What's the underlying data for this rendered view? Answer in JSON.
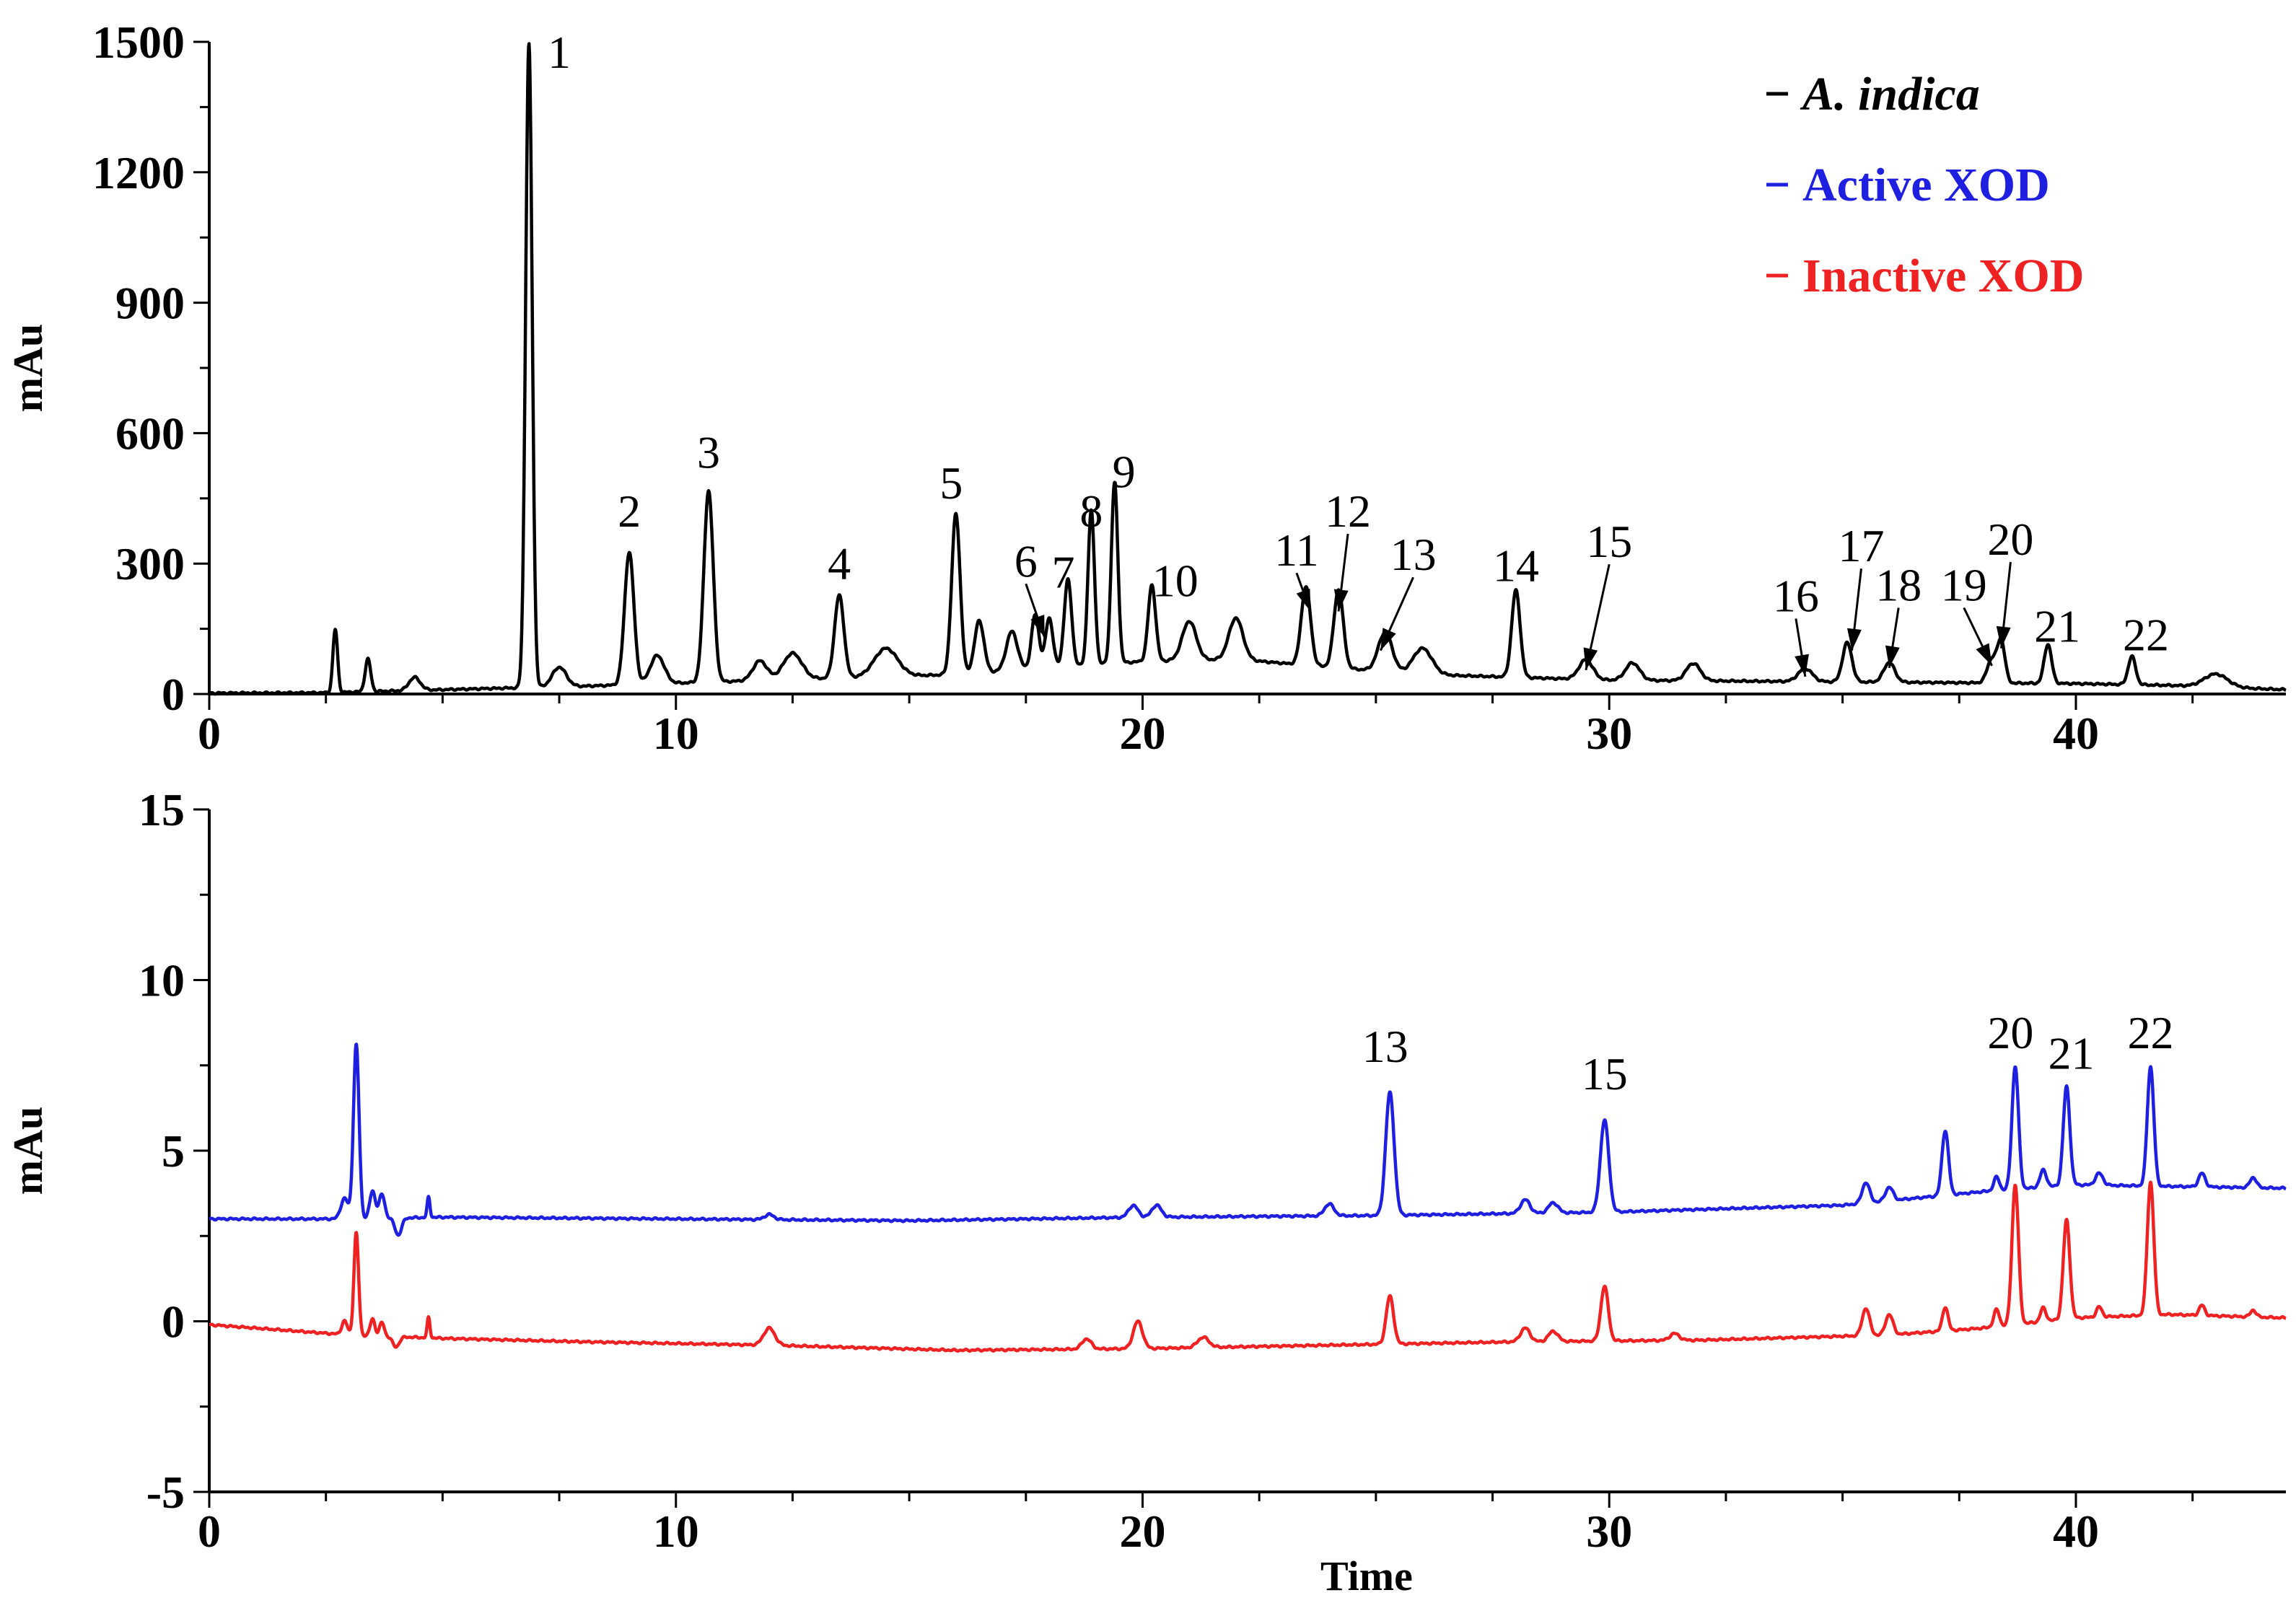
{
  "chart_data": [
    {
      "type": "line",
      "panel": "top",
      "xlabel": "",
      "ylabel": "mAu",
      "xlim": [
        0,
        44.5
      ],
      "ylim": [
        0,
        1500
      ],
      "x_ticks": [
        0,
        10,
        20,
        30,
        40
      ],
      "y_ticks": [
        0,
        300,
        600,
        900,
        1200,
        1500
      ],
      "x_tick_labels": [
        "0",
        "10",
        "20",
        "30",
        "40"
      ],
      "y_tick_labels": [
        "0",
        "300",
        "600",
        "900",
        "1200",
        "1500"
      ],
      "legend": [
        {
          "name": "A. indica",
          "color": "#000000",
          "italic": true
        },
        {
          "name": "Active XOD",
          "color": "#1f1fe0",
          "italic": false
        },
        {
          "name": "Inactive XOD",
          "color": "#ee2222",
          "italic": false
        }
      ],
      "series": [
        {
          "name": "A. indica",
          "color": "#000000",
          "baseline": [
            [
              0,
              2
            ],
            [
              2.5,
              3
            ],
            [
              5,
              10
            ],
            [
              8,
              18
            ],
            [
              12,
              32
            ],
            [
              16,
              45
            ],
            [
              18,
              60
            ],
            [
              20,
              75
            ],
            [
              22,
              80
            ],
            [
              24,
              62
            ],
            [
              26,
              45
            ],
            [
              30,
              32
            ],
            [
              35,
              28
            ],
            [
              40,
              24
            ],
            [
              42,
              20
            ],
            [
              44.5,
              10
            ]
          ],
          "peaks": [
            {
              "x": 2.7,
              "y": 145,
              "w": 0.05
            },
            {
              "x": 3.4,
              "y": 75,
              "w": 0.06
            },
            {
              "x": 4.4,
              "y": 30,
              "w": 0.12
            },
            {
              "x": 6.85,
              "y": 1480,
              "w": 0.07
            },
            {
              "x": 7.5,
              "y": 45,
              "w": 0.15
            },
            {
              "x": 9.0,
              "y": 305,
              "w": 0.1
            },
            {
              "x": 9.6,
              "y": 65,
              "w": 0.15
            },
            {
              "x": 10.7,
              "y": 440,
              "w": 0.1
            },
            {
              "x": 11.8,
              "y": 45,
              "w": 0.15
            },
            {
              "x": 12.5,
              "y": 60,
              "w": 0.2
            },
            {
              "x": 13.5,
              "y": 190,
              "w": 0.1
            },
            {
              "x": 14.5,
              "y": 65,
              "w": 0.25
            },
            {
              "x": 16.0,
              "y": 370,
              "w": 0.09
            },
            {
              "x": 16.5,
              "y": 120,
              "w": 0.1
            },
            {
              "x": 17.2,
              "y": 90,
              "w": 0.12
            },
            {
              "x": 17.7,
              "y": 125,
              "w": 0.08
            },
            {
              "x": 18.0,
              "y": 115,
              "w": 0.08
            },
            {
              "x": 18.4,
              "y": 200,
              "w": 0.08
            },
            {
              "x": 18.9,
              "y": 355,
              "w": 0.07
            },
            {
              "x": 19.4,
              "y": 415,
              "w": 0.07
            },
            {
              "x": 20.2,
              "y": 175,
              "w": 0.08
            },
            {
              "x": 21.0,
              "y": 90,
              "w": 0.15
            },
            {
              "x": 22.0,
              "y": 95,
              "w": 0.15
            },
            {
              "x": 23.5,
              "y": 180,
              "w": 0.1
            },
            {
              "x": 24.2,
              "y": 180,
              "w": 0.1
            },
            {
              "x": 25.2,
              "y": 90,
              "w": 0.15
            },
            {
              "x": 26.0,
              "y": 60,
              "w": 0.2
            },
            {
              "x": 28.0,
              "y": 200,
              "w": 0.09
            },
            {
              "x": 29.5,
              "y": 45,
              "w": 0.15
            },
            {
              "x": 30.5,
              "y": 40,
              "w": 0.15
            },
            {
              "x": 31.8,
              "y": 40,
              "w": 0.15
            },
            {
              "x": 34.2,
              "y": 30,
              "w": 0.15
            },
            {
              "x": 35.1,
              "y": 90,
              "w": 0.1
            },
            {
              "x": 36.0,
              "y": 45,
              "w": 0.12
            },
            {
              "x": 38.2,
              "y": 55,
              "w": 0.1
            },
            {
              "x": 38.4,
              "y": 95,
              "w": 0.08
            },
            {
              "x": 39.4,
              "y": 90,
              "w": 0.08
            },
            {
              "x": 41.2,
              "y": 65,
              "w": 0.08
            },
            {
              "x": 43.0,
              "y": 30,
              "w": 0.25
            }
          ]
        }
      ],
      "peak_labels": [
        {
          "text": "1",
          "x": 7.5,
          "y": 1440,
          "arrow": false
        },
        {
          "text": "2",
          "x": 9.0,
          "y": 385,
          "arrow": false
        },
        {
          "text": "3",
          "x": 10.7,
          "y": 520,
          "arrow": false
        },
        {
          "text": "4",
          "x": 13.5,
          "y": 265,
          "arrow": false
        },
        {
          "text": "5",
          "x": 15.9,
          "y": 450,
          "arrow": false
        },
        {
          "text": "6",
          "x": 17.5,
          "y": 270,
          "arrow": true,
          "tx": 17.9,
          "ty": 130
        },
        {
          "text": "7",
          "x": 18.3,
          "y": 245,
          "arrow": false
        },
        {
          "text": "8",
          "x": 18.9,
          "y": 385,
          "arrow": false
        },
        {
          "text": "9",
          "x": 19.6,
          "y": 475,
          "arrow": false
        },
        {
          "text": "10",
          "x": 20.7,
          "y": 225,
          "arrow": false
        },
        {
          "text": "11",
          "x": 23.3,
          "y": 295,
          "arrow": true,
          "tx": 23.6,
          "ty": 190
        },
        {
          "text": "12",
          "x": 24.4,
          "y": 385,
          "arrow": true,
          "tx": 24.2,
          "ty": 190
        },
        {
          "text": "13",
          "x": 25.8,
          "y": 285,
          "arrow": true,
          "tx": 25.1,
          "ty": 100
        },
        {
          "text": "14",
          "x": 28.0,
          "y": 260,
          "arrow": false
        },
        {
          "text": "15",
          "x": 30.0,
          "y": 315,
          "arrow": true,
          "tx": 29.5,
          "ty": 55
        },
        {
          "text": "16",
          "x": 34.0,
          "y": 190,
          "arrow": true,
          "tx": 34.2,
          "ty": 40
        },
        {
          "text": "17",
          "x": 35.4,
          "y": 305,
          "arrow": true,
          "tx": 35.2,
          "ty": 100
        },
        {
          "text": "18",
          "x": 36.2,
          "y": 215,
          "arrow": true,
          "tx": 36.0,
          "ty": 60
        },
        {
          "text": "19",
          "x": 37.6,
          "y": 215,
          "arrow": true,
          "tx": 38.2,
          "ty": 65
        },
        {
          "text": "20",
          "x": 38.6,
          "y": 320,
          "arrow": true,
          "tx": 38.4,
          "ty": 105
        },
        {
          "text": "21",
          "x": 39.6,
          "y": 120,
          "arrow": false
        },
        {
          "text": "22",
          "x": 41.5,
          "y": 100,
          "arrow": false
        }
      ]
    },
    {
      "type": "line",
      "panel": "bottom",
      "xlabel": "Time",
      "ylabel": "mAu",
      "xlim": [
        0,
        44.5
      ],
      "ylim": [
        -5,
        15
      ],
      "x_ticks": [
        0,
        10,
        20,
        30,
        40
      ],
      "y_ticks": [
        -5,
        0,
        5,
        10,
        15
      ],
      "x_tick_labels": [
        "0",
        "10",
        "20",
        "30",
        "40"
      ],
      "y_tick_labels": [
        "-5",
        "0",
        "5",
        "10",
        "15"
      ],
      "series": [
        {
          "name": "Active XOD",
          "color": "#1f1fe0",
          "baseline": [
            [
              0,
              3.0
            ],
            [
              2.8,
              3.0
            ],
            [
              5,
              3.05
            ],
            [
              10,
              3.0
            ],
            [
              15,
              2.95
            ],
            [
              20,
              3.05
            ],
            [
              25,
              3.1
            ],
            [
              30,
              3.2
            ],
            [
              35,
              3.4
            ],
            [
              38,
              3.8
            ],
            [
              40,
              4.0
            ],
            [
              44.5,
              3.9
            ]
          ],
          "peaks": [
            {
              "x": 2.9,
              "y": 0.6,
              "w": 0.08
            },
            {
              "x": 3.15,
              "y": 5.1,
              "w": 0.06
            },
            {
              "x": 3.5,
              "y": 0.8,
              "w": 0.06
            },
            {
              "x": 3.7,
              "y": 0.7,
              "w": 0.06
            },
            {
              "x": 4.05,
              "y": -0.5,
              "w": 0.07
            },
            {
              "x": 4.7,
              "y": 0.6,
              "w": 0.03
            },
            {
              "x": 12.0,
              "y": 0.15,
              "w": 0.1
            },
            {
              "x": 19.8,
              "y": 0.35,
              "w": 0.1
            },
            {
              "x": 20.3,
              "y": 0.35,
              "w": 0.1
            },
            {
              "x": 24.0,
              "y": 0.35,
              "w": 0.1
            },
            {
              "x": 25.3,
              "y": 3.6,
              "w": 0.09
            },
            {
              "x": 28.2,
              "y": 0.4,
              "w": 0.1
            },
            {
              "x": 28.8,
              "y": 0.3,
              "w": 0.1
            },
            {
              "x": 29.9,
              "y": 2.7,
              "w": 0.09
            },
            {
              "x": 35.5,
              "y": 0.6,
              "w": 0.08
            },
            {
              "x": 36.0,
              "y": 0.4,
              "w": 0.08
            },
            {
              "x": 37.2,
              "y": 1.9,
              "w": 0.07
            },
            {
              "x": 38.3,
              "y": 0.4,
              "w": 0.06
            },
            {
              "x": 38.7,
              "y": 3.6,
              "w": 0.07
            },
            {
              "x": 39.3,
              "y": 0.5,
              "w": 0.07
            },
            {
              "x": 39.8,
              "y": 2.9,
              "w": 0.07
            },
            {
              "x": 40.5,
              "y": 0.35,
              "w": 0.08
            },
            {
              "x": 41.6,
              "y": 3.5,
              "w": 0.07
            },
            {
              "x": 42.7,
              "y": 0.4,
              "w": 0.07
            },
            {
              "x": 43.8,
              "y": 0.3,
              "w": 0.07
            }
          ]
        },
        {
          "name": "Inactive XOD",
          "color": "#ee2222",
          "baseline": [
            [
              0,
              -0.1
            ],
            [
              3,
              -0.4
            ],
            [
              5,
              -0.5
            ],
            [
              8,
              -0.6
            ],
            [
              12,
              -0.7
            ],
            [
              16,
              -0.85
            ],
            [
              20,
              -0.8
            ],
            [
              24,
              -0.7
            ],
            [
              28,
              -0.6
            ],
            [
              32,
              -0.55
            ],
            [
              36,
              -0.4
            ],
            [
              38,
              -0.2
            ],
            [
              40,
              0.1
            ],
            [
              42,
              0.2
            ],
            [
              44.5,
              0.1
            ]
          ],
          "peaks": [
            {
              "x": 2.9,
              "y": 0.4,
              "w": 0.06
            },
            {
              "x": 3.15,
              "y": 3.0,
              "w": 0.05
            },
            {
              "x": 3.5,
              "y": 0.5,
              "w": 0.05
            },
            {
              "x": 3.7,
              "y": 0.4,
              "w": 0.05
            },
            {
              "x": 4.0,
              "y": -0.3,
              "w": 0.07
            },
            {
              "x": 4.7,
              "y": 0.6,
              "w": 0.03
            },
            {
              "x": 12.0,
              "y": 0.5,
              "w": 0.12
            },
            {
              "x": 18.8,
              "y": 0.3,
              "w": 0.1
            },
            {
              "x": 19.9,
              "y": 0.8,
              "w": 0.1
            },
            {
              "x": 21.3,
              "y": 0.3,
              "w": 0.12
            },
            {
              "x": 25.3,
              "y": 1.4,
              "w": 0.08
            },
            {
              "x": 28.2,
              "y": 0.4,
              "w": 0.1
            },
            {
              "x": 28.8,
              "y": 0.3,
              "w": 0.1
            },
            {
              "x": 29.9,
              "y": 1.6,
              "w": 0.08
            },
            {
              "x": 31.4,
              "y": 0.2,
              "w": 0.1
            },
            {
              "x": 35.5,
              "y": 0.8,
              "w": 0.08
            },
            {
              "x": 36.0,
              "y": 0.6,
              "w": 0.08
            },
            {
              "x": 37.2,
              "y": 0.7,
              "w": 0.06
            },
            {
              "x": 38.3,
              "y": 0.5,
              "w": 0.06
            },
            {
              "x": 38.7,
              "y": 4.1,
              "w": 0.07
            },
            {
              "x": 39.3,
              "y": 0.4,
              "w": 0.06
            },
            {
              "x": 39.8,
              "y": 2.9,
              "w": 0.07
            },
            {
              "x": 40.5,
              "y": 0.3,
              "w": 0.06
            },
            {
              "x": 41.6,
              "y": 3.9,
              "w": 0.07
            },
            {
              "x": 42.7,
              "y": 0.3,
              "w": 0.06
            },
            {
              "x": 43.8,
              "y": 0.2,
              "w": 0.06
            }
          ]
        }
      ],
      "peak_labels": [
        {
          "text": "13",
          "x": 25.2,
          "y": 7.6,
          "arrow": false
        },
        {
          "text": "15",
          "x": 29.9,
          "y": 6.8,
          "arrow": false
        },
        {
          "text": "20",
          "x": 38.6,
          "y": 8.0,
          "arrow": false
        },
        {
          "text": "21",
          "x": 39.9,
          "y": 7.4,
          "arrow": false
        },
        {
          "text": "22",
          "x": 41.6,
          "y": 8.0,
          "arrow": false
        }
      ]
    }
  ]
}
